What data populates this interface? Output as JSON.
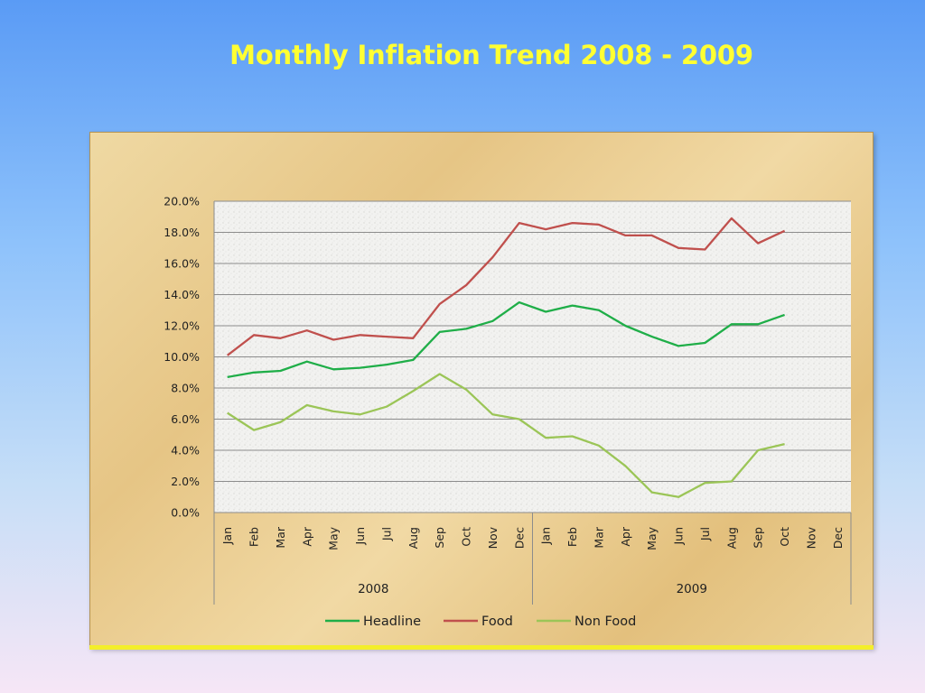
{
  "slide": {
    "title": "Monthly Inflation Trend 2008 - 2009"
  },
  "chart_data": {
    "type": "line",
    "title": "",
    "xlabel": "",
    "ylabel": "",
    "categories": [
      "Jan",
      "Feb",
      "Mar",
      "Apr",
      "May",
      "Jun",
      "Jul",
      "Aug",
      "Sep",
      "Oct",
      "Nov",
      "Dec",
      "Jan",
      "Feb",
      "Mar",
      "Apr",
      "May",
      "Jun",
      "Jul",
      "Aug",
      "Sep",
      "Oct",
      "Nov",
      "Dec"
    ],
    "groups": [
      {
        "label": "2008",
        "count": 12
      },
      {
        "label": "2009",
        "count": 12
      }
    ],
    "ylim": [
      0,
      20
    ],
    "y_ticks": [
      "0.0%",
      "2.0%",
      "4.0%",
      "6.0%",
      "8.0%",
      "10.0%",
      "12.0%",
      "14.0%",
      "16.0%",
      "18.0%",
      "20.0%"
    ],
    "grid": true,
    "legend_position": "bottom",
    "series": [
      {
        "name": "Headline",
        "color": "#1fae48",
        "values": [
          8.7,
          9.0,
          9.1,
          9.7,
          9.2,
          9.3,
          9.5,
          9.8,
          11.6,
          11.8,
          12.3,
          13.5,
          12.9,
          13.3,
          13.0,
          12.0,
          11.3,
          10.7,
          10.9,
          12.1,
          12.1,
          12.7,
          null,
          null
        ]
      },
      {
        "name": "Food",
        "color": "#c0504d",
        "values": [
          10.1,
          11.4,
          11.2,
          11.7,
          11.1,
          11.4,
          11.3,
          11.2,
          13.4,
          14.6,
          16.4,
          18.6,
          18.2,
          18.6,
          18.5,
          17.8,
          17.8,
          17.0,
          16.9,
          18.9,
          17.3,
          18.1,
          null,
          null
        ]
      },
      {
        "name": "Non Food",
        "color": "#9bc557",
        "values": [
          6.4,
          5.3,
          5.8,
          6.9,
          6.5,
          6.3,
          6.8,
          7.8,
          8.9,
          7.9,
          6.3,
          6.0,
          4.8,
          4.9,
          4.3,
          3.0,
          1.3,
          1.0,
          1.9,
          2.0,
          4.0,
          4.4,
          null,
          null
        ]
      }
    ]
  }
}
